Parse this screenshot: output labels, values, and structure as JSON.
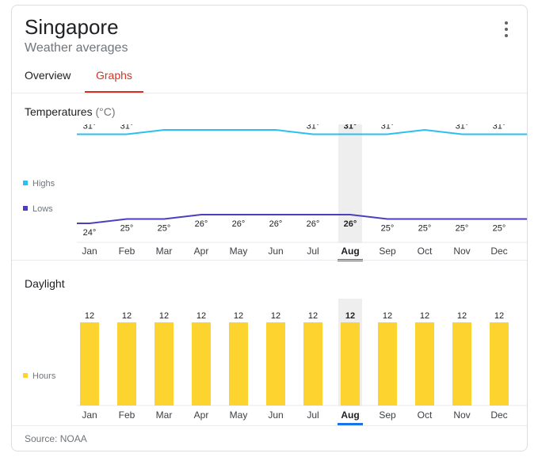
{
  "header": {
    "title": "Singapore",
    "subtitle": "Weather averages",
    "menu_icon": "more-vert-icon"
  },
  "tabs": [
    {
      "label": "Overview",
      "selected": false
    },
    {
      "label": "Graphs",
      "selected": true
    }
  ],
  "temperatures": {
    "title": "Temperatures",
    "unit": "(°C)"
  },
  "daylight": {
    "title": "Daylight"
  },
  "selected_month": "Aug",
  "colors": {
    "highs": "#29c0f0",
    "lows": "#4b3fbf",
    "hours": "#fdd330",
    "accent": "#d93025",
    "selected_underline": "#1a73e8",
    "highlight_band": "#eeeeee"
  },
  "chart_data": [
    {
      "type": "line",
      "title": "Temperatures",
      "unit": "(°C)",
      "categories": [
        "Jan",
        "Feb",
        "Mar",
        "Apr",
        "May",
        "Jun",
        "Jul",
        "Aug",
        "Sep",
        "Oct",
        "Nov",
        "Dec"
      ],
      "series": [
        {
          "name": "Highs",
          "values": [
            31,
            31,
            32,
            32,
            32,
            32,
            31,
            31,
            31,
            32,
            31,
            31
          ]
        },
        {
          "name": "Lows",
          "values": [
            24,
            25,
            25,
            26,
            26,
            26,
            26,
            26,
            25,
            25,
            25,
            25
          ]
        }
      ],
      "value_suffix": "°",
      "legend": "left"
    },
    {
      "type": "bar",
      "title": "Daylight",
      "categories": [
        "Jan",
        "Feb",
        "Mar",
        "Apr",
        "May",
        "Jun",
        "Jul",
        "Aug",
        "Sep",
        "Oct",
        "Nov",
        "Dec"
      ],
      "series": [
        {
          "name": "Hours",
          "values": [
            12,
            12,
            12,
            12,
            12,
            12,
            12,
            12,
            12,
            12,
            12,
            12
          ]
        }
      ],
      "legend": "left"
    }
  ],
  "footer": {
    "source": "Source: NOAA"
  }
}
